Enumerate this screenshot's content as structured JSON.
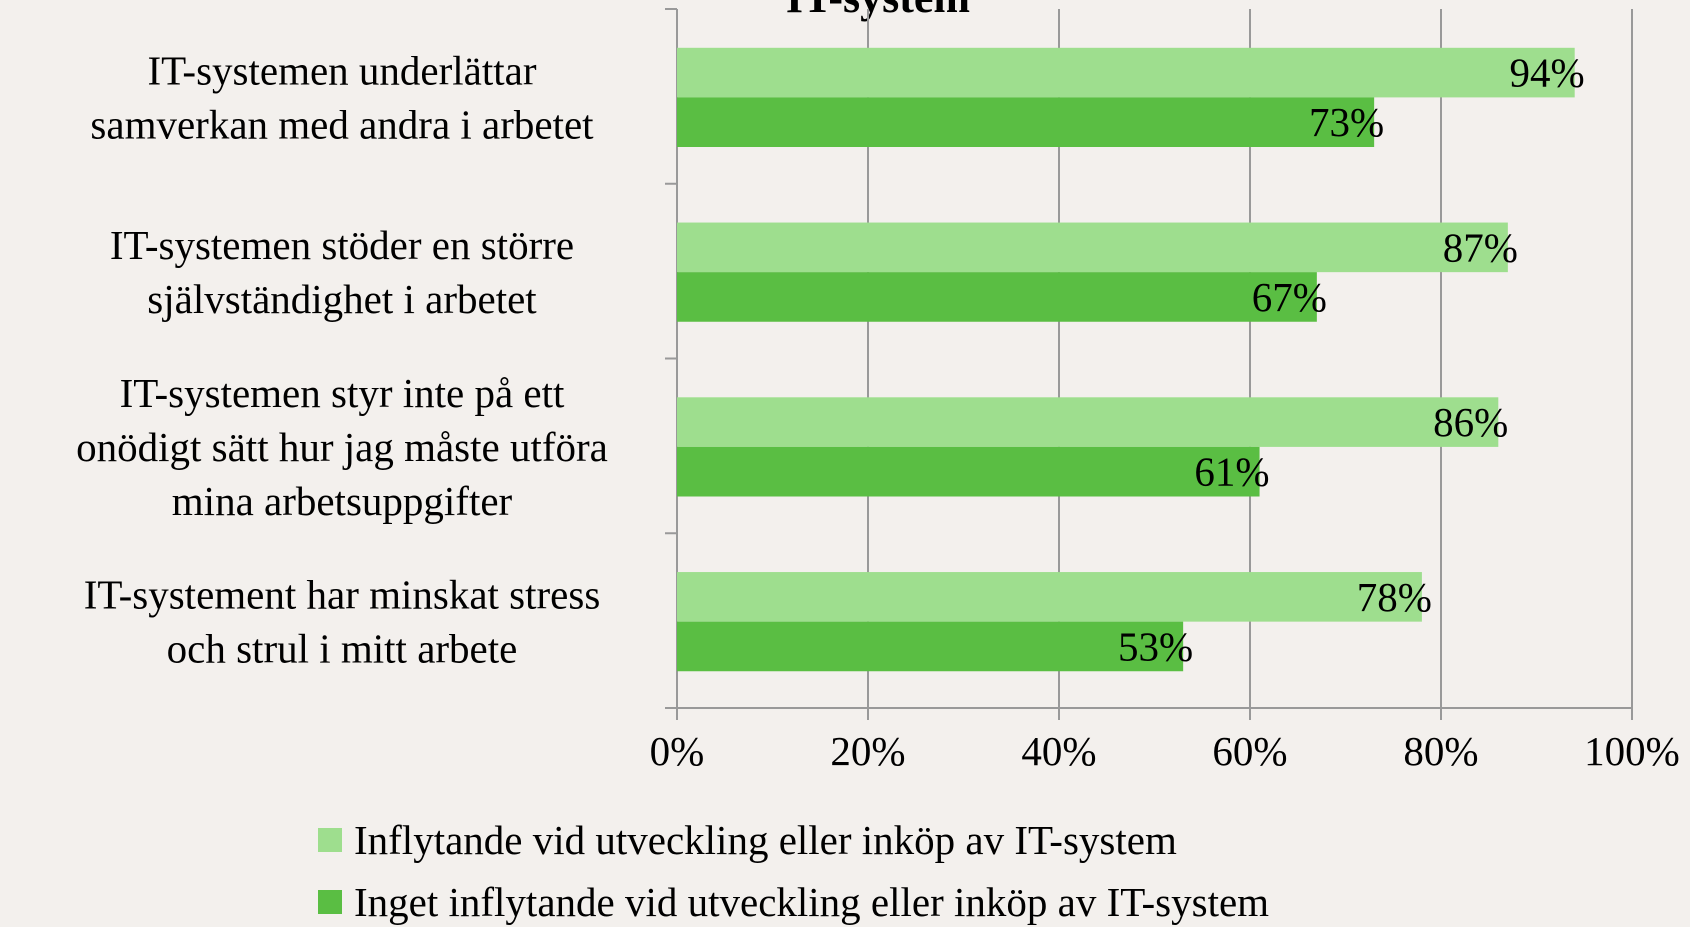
{
  "chart_data": {
    "type": "bar",
    "orientation": "horizontal",
    "title": "IT-system",
    "categories": [
      [
        "IT-systemen underlättar",
        "samverkan med andra i arbetet"
      ],
      [
        "IT-systemen stöder en större",
        "självständighet i arbetet"
      ],
      [
        "IT-systemen styr inte på ett",
        "onödigt sätt hur jag måste utföra",
        "mina arbetsuppgifter"
      ],
      [
        "IT-systement har minskat stress",
        "och strul i mitt arbete"
      ]
    ],
    "series": [
      {
        "name": "Inflytande vid utveckling eller inköp av IT-system",
        "color": "#9ede8e",
        "values": [
          94,
          87,
          86,
          78
        ],
        "value_labels": [
          "94%",
          "87%",
          "86%",
          "78%"
        ]
      },
      {
        "name": "Inget inflytande vid utveckling eller inköp av IT-system",
        "color": "#5abe43",
        "values": [
          73,
          67,
          61,
          53
        ],
        "value_labels": [
          "73%",
          "67%",
          "61%",
          "53%"
        ]
      }
    ],
    "xlim": [
      0,
      100
    ],
    "xticks": [
      {
        "value": 0,
        "label": "0%"
      },
      {
        "value": 20,
        "label": "20%"
      },
      {
        "value": 40,
        "label": "40%"
      },
      {
        "value": 60,
        "label": "60%"
      },
      {
        "value": 80,
        "label": "80%"
      },
      {
        "value": 100,
        "label": "100%"
      }
    ],
    "grid": true,
    "legend": "bottom"
  }
}
